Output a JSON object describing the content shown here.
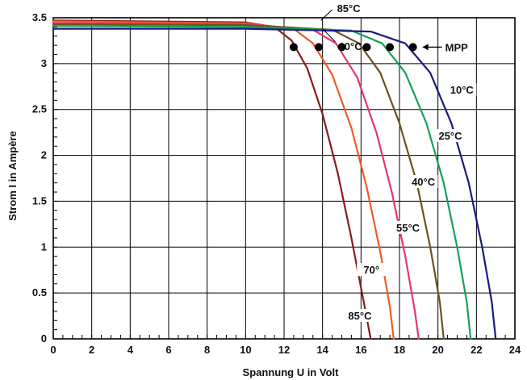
{
  "chart_data": {
    "type": "line",
    "title": "",
    "xlabel": "Spannung U in Volt",
    "ylabel": "Strom I in Ampère",
    "xlim": [
      0,
      24
    ],
    "ylim": [
      0,
      3.5
    ],
    "xticks": [
      0,
      2,
      4,
      6,
      8,
      10,
      12,
      14,
      16,
      18,
      20,
      22,
      24
    ],
    "yticks": [
      0,
      0.5,
      1,
      1.5,
      2,
      2.5,
      3,
      3.5
    ],
    "xtick_labels": [
      "0",
      "2",
      "4",
      "6",
      "8",
      "10",
      "12",
      "14",
      "16",
      "18",
      "20",
      "22",
      "24"
    ],
    "ytick_labels": [
      "0",
      "0.5",
      "1",
      "1.5",
      "2",
      "2.5",
      "3",
      "3.5"
    ],
    "grid": true,
    "series": [
      {
        "name": "85°C",
        "color": "#8b1a1a",
        "x": [
          0,
          10,
          11.5,
          12.4,
          13.2,
          14.0,
          14.8,
          15.5,
          16.1,
          16.5
        ],
        "y": [
          3.47,
          3.45,
          3.4,
          3.25,
          2.95,
          2.45,
          1.8,
          1.1,
          0.45,
          0
        ]
      },
      {
        "name": "70°",
        "color": "#f05a24",
        "x": [
          0,
          10,
          12.5,
          13.5,
          14.5,
          15.5,
          16.3,
          17.0,
          17.5,
          17.7
        ],
        "y": [
          3.46,
          3.44,
          3.38,
          3.22,
          2.88,
          2.3,
          1.65,
          0.95,
          0.35,
          0
        ]
      },
      {
        "name": "55°C",
        "color": "#e8337a",
        "x": [
          0,
          10,
          13.5,
          14.7,
          15.8,
          16.8,
          17.6,
          18.3,
          18.8,
          19.0
        ],
        "y": [
          3.44,
          3.43,
          3.37,
          3.22,
          2.85,
          2.25,
          1.6,
          0.9,
          0.3,
          0
        ]
      },
      {
        "name": "40°C",
        "color": "#6b5320",
        "x": [
          0,
          10,
          14.5,
          15.9,
          17.0,
          18.0,
          18.9,
          19.6,
          20.1,
          20.3
        ],
        "y": [
          3.43,
          3.42,
          3.37,
          3.22,
          2.9,
          2.35,
          1.7,
          1.0,
          0.4,
          0
        ]
      },
      {
        "name": "25°C",
        "color": "#16a05a",
        "x": [
          0,
          10,
          15.5,
          17.1,
          18.3,
          19.4,
          20.3,
          21.0,
          21.5,
          21.7
        ],
        "y": [
          3.41,
          3.4,
          3.36,
          3.22,
          2.9,
          2.35,
          1.7,
          1.0,
          0.4,
          0
        ]
      },
      {
        "name": "10°C",
        "color": "#1a1a80",
        "x": [
          0,
          10,
          16.5,
          18.3,
          19.6,
          20.7,
          21.6,
          22.3,
          22.8,
          23.0
        ],
        "y": [
          3.38,
          3.38,
          3.35,
          3.22,
          2.9,
          2.35,
          1.7,
          1.0,
          0.4,
          0
        ]
      }
    ],
    "mpp_points": {
      "x": [
        12.5,
        13.8,
        15.0,
        16.3,
        17.5,
        18.7
      ],
      "y": [
        3.18,
        3.18,
        3.18,
        3.18,
        3.18,
        3.18
      ]
    },
    "annotations": {
      "mpp": {
        "label": "MPP"
      },
      "top_85": {
        "label": "85°C",
        "x": 14.5
      },
      "top_10": {
        "label": "10°C",
        "x": 14.5
      },
      "lbl_85": {
        "label": "85°C",
        "x": 15.9,
        "y": 0.22
      },
      "lbl_70": {
        "label": "70°",
        "x": 16.5,
        "y": 0.72
      },
      "lbl_55": {
        "label": "55°C",
        "x": 18.4,
        "y": 1.18
      },
      "lbl_40": {
        "label": "40°C",
        "x": 19.2,
        "y": 1.68
      },
      "lbl_25": {
        "label": "25°C",
        "x": 20.6,
        "y": 2.18
      },
      "lbl_10": {
        "label": "10°C",
        "x": 21.2,
        "y": 2.68
      }
    }
  }
}
